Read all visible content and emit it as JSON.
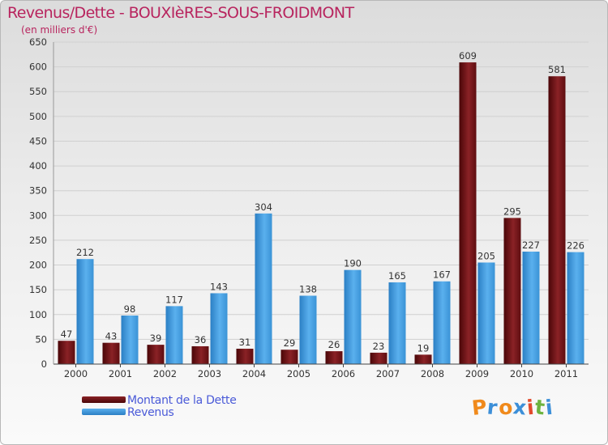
{
  "header": {
    "title": "Revenus/Dette - BOUXIèRES-SOUS-FROIDMONT",
    "subtitle": "(en milliers d'€)"
  },
  "chart_data": {
    "type": "bar",
    "title": "Revenus/Dette - BOUXIèRES-SOUS-FROIDMONT",
    "subtitle": "(en milliers d'€)",
    "xlabel": "",
    "ylabel": "",
    "ylim": [
      0,
      650
    ],
    "yticks": [
      0,
      50,
      100,
      150,
      200,
      250,
      300,
      350,
      400,
      450,
      500,
      550,
      600,
      650
    ],
    "grid": true,
    "legend_position": "bottom-left",
    "categories": [
      "2000",
      "2001",
      "2002",
      "2003",
      "2004",
      "2005",
      "2006",
      "2007",
      "2008",
      "2009",
      "2010",
      "2011"
    ],
    "series": [
      {
        "name": "Montant de la Dette",
        "color": "#7a1418",
        "values": [
          47,
          43,
          39,
          36,
          31,
          29,
          26,
          23,
          19,
          609,
          295,
          581
        ]
      },
      {
        "name": "Revenus",
        "color": "#3d9be0",
        "values": [
          212,
          98,
          117,
          143,
          304,
          138,
          190,
          165,
          167,
          205,
          227,
          226
        ]
      }
    ]
  },
  "legend": {
    "items": [
      {
        "label": "Montant de la Dette",
        "color": "#7a1418"
      },
      {
        "label": "Revenus",
        "color": "#3d9be0"
      }
    ]
  },
  "logo": {
    "letters": [
      "P",
      "r",
      "o",
      "x",
      "i",
      "t",
      "i"
    ],
    "colors": [
      "#f08a1c",
      "#3c8fd8",
      "#f08a1c",
      "#3c8fd8",
      "#e24a2c",
      "#6db33f",
      "#3c8fd8"
    ]
  }
}
